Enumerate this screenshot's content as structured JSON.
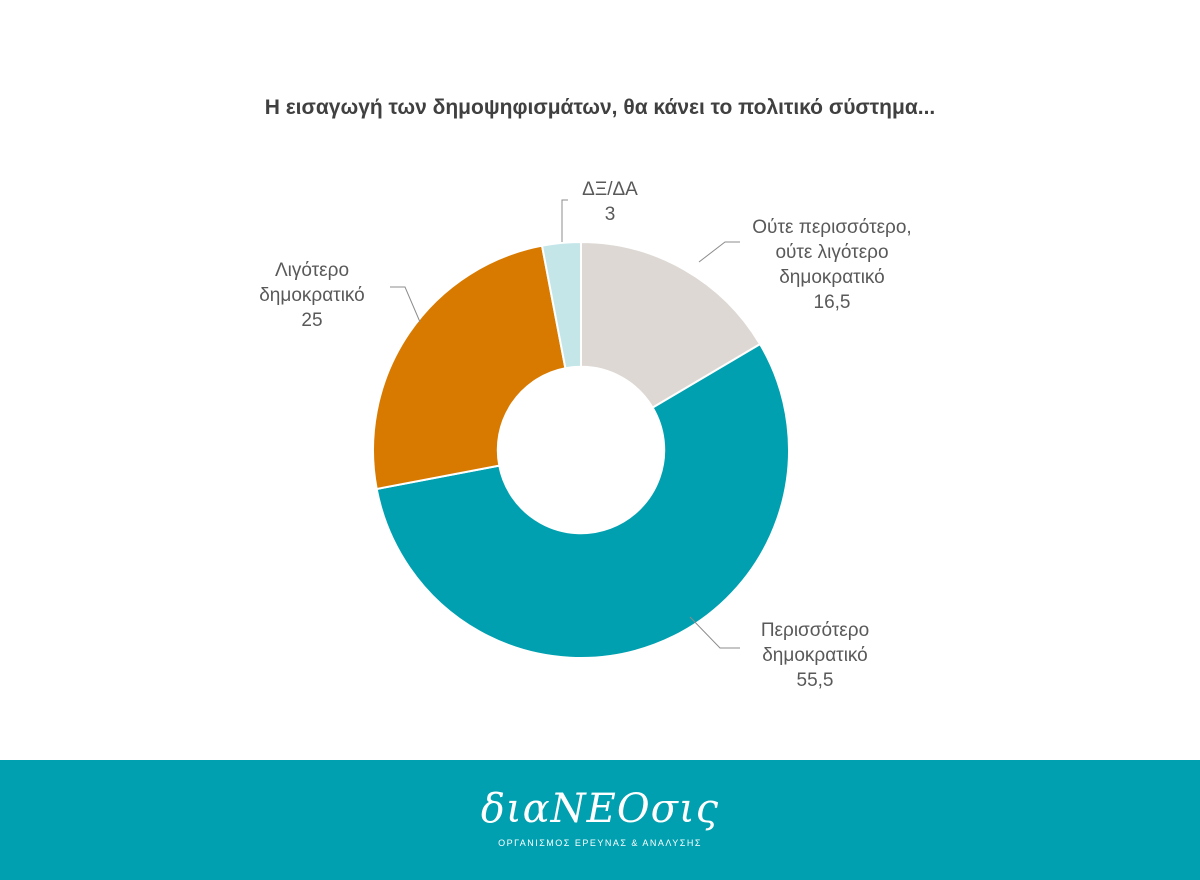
{
  "colors": {
    "footer_background": "#00A0B0",
    "title_text": "#404040",
    "label_text": "#595959"
  },
  "chart_data": {
    "type": "pie",
    "title": "Η εισαγωγή των δημοψηφισμάτων, θα κάνει το πολιτικό σύστημα...",
    "hole": 0.4,
    "start_angle_deg": 0,
    "direction": "clockwise",
    "slices": [
      {
        "label_lines": [
          "Ούτε περισσότερο,",
          "ούτε λιγότερο",
          "δημοκρατικό"
        ],
        "value_text": "16,5",
        "value": 16.5,
        "color": "#DDD8D3"
      },
      {
        "label_lines": [
          "Περισσότερο",
          "δημοκρατικό"
        ],
        "value_text": "55,5",
        "value": 55.5,
        "color": "#00A0B0"
      },
      {
        "label_lines": [
          "Λιγότερο",
          "δημοκρατικό"
        ],
        "value_text": "25",
        "value": 25,
        "color": "#D97A00"
      },
      {
        "label_lines": [
          "ΔΞ/ΔΑ"
        ],
        "value_text": "3",
        "value": 3,
        "color": "#C4E6E9"
      }
    ]
  },
  "footer": {
    "logo": "διαΝΕΟσις",
    "subtitle": "ΟΡΓΑΝΙΣΜΟΣ ΕΡΕΥΝΑΣ & ΑΝΑΛΥΣΗΣ"
  }
}
